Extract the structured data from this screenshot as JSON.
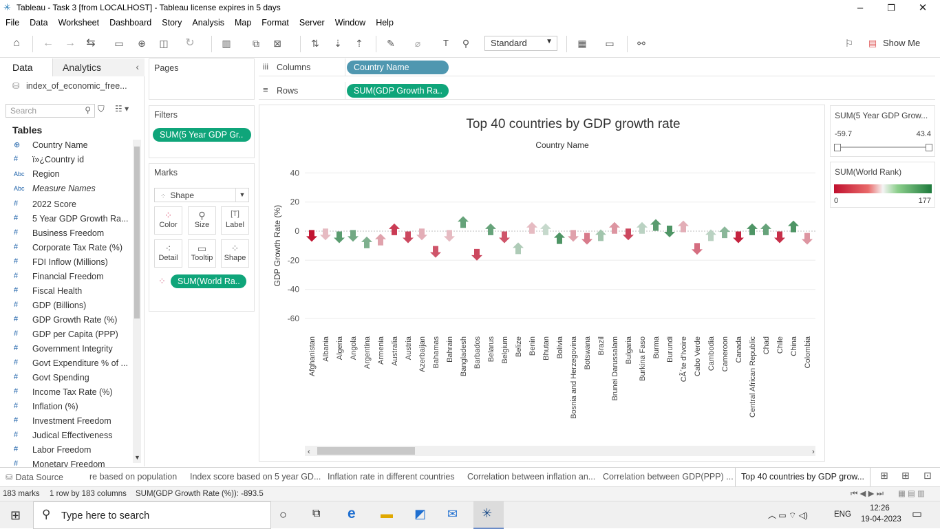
{
  "window": {
    "title": "Tableau - Task 3 [from LOCALHOST] - Tableau license expires in 5 days"
  },
  "menu": [
    "File",
    "Data",
    "Worksheet",
    "Dashboard",
    "Story",
    "Analysis",
    "Map",
    "Format",
    "Server",
    "Window",
    "Help"
  ],
  "toolbar": {
    "view_mode": "Standard",
    "show_me": "Show Me"
  },
  "left_panel": {
    "tab_data": "Data",
    "tab_analytics": "Analytics",
    "data_source": "index_of_economic_free...",
    "search_placeholder": "Search",
    "tables_label": "Tables",
    "fields": [
      {
        "icon": "globe",
        "label": "Country Name"
      },
      {
        "icon": "#",
        "label": "ï»¿Country id"
      },
      {
        "icon": "Abc",
        "label": "Region"
      },
      {
        "icon": "Abc",
        "label": "Measure Names",
        "italic": true
      },
      {
        "icon": "#",
        "label": "2022 Score"
      },
      {
        "icon": "#",
        "label": "5 Year GDP Growth Ra..."
      },
      {
        "icon": "#",
        "label": "Business Freedom"
      },
      {
        "icon": "#",
        "label": "Corporate Tax Rate (%)"
      },
      {
        "icon": "#",
        "label": "FDI Inflow (Millions)"
      },
      {
        "icon": "#",
        "label": "Financial Freedom"
      },
      {
        "icon": "#",
        "label": "Fiscal Health"
      },
      {
        "icon": "#",
        "label": "GDP (Billions)"
      },
      {
        "icon": "#",
        "label": "GDP Growth Rate (%)"
      },
      {
        "icon": "#",
        "label": "GDP per Capita (PPP)"
      },
      {
        "icon": "#",
        "label": "Government Integrity"
      },
      {
        "icon": "#",
        "label": "Govt Expenditure % of ..."
      },
      {
        "icon": "#",
        "label": "Govt Spending"
      },
      {
        "icon": "#",
        "label": "Income Tax Rate (%)"
      },
      {
        "icon": "#",
        "label": "Inflation (%)"
      },
      {
        "icon": "#",
        "label": "Investment Freedom"
      },
      {
        "icon": "#",
        "label": "Judical Effectiveness"
      },
      {
        "icon": "#",
        "label": "Labor Freedom"
      },
      {
        "icon": "#",
        "label": "Monetary Freedom"
      }
    ]
  },
  "cards": {
    "pages": "Pages",
    "filters": "Filters",
    "filter_pill": "SUM(5 Year GDP Gr..",
    "marks": "Marks",
    "mark_type": "Shape",
    "mark_buttons": [
      "Color",
      "Size",
      "Label",
      "Detail",
      "Tooltip",
      "Shape"
    ],
    "marks_pill": "SUM(World Ra.."
  },
  "shelves": {
    "columns_label": "Columns",
    "columns_pill": "Country Name",
    "rows_label": "Rows",
    "rows_pill": "SUM(GDP Growth Ra.."
  },
  "legends": {
    "filter_title": "SUM(5 Year GDP Grow...",
    "filter_min": "-59.7",
    "filter_max": "43.4",
    "color_title": "SUM(World Rank)",
    "color_min": "0",
    "color_max": "177"
  },
  "chart_data": {
    "type": "scatter",
    "title": "Top 40 countries by GDP growth rate",
    "xlabel": "Country Name",
    "ylabel": "GDP Growth Rate (%)",
    "ylim": [
      -70,
      50
    ],
    "yticks": [
      40,
      20,
      0,
      -20,
      -40,
      -60
    ],
    "mark_shape": "arrow",
    "color_scale": [
      "#c0102e",
      "#f2f2f2",
      "#1e7a3c"
    ],
    "points": [
      {
        "country": "Afghanistan",
        "value": -3,
        "dir": "down",
        "rank": 175
      },
      {
        "country": "Albania",
        "value": -2,
        "dir": "down",
        "rank": 110
      },
      {
        "country": "Algeria",
        "value": -4,
        "dir": "down",
        "rank": 25
      },
      {
        "country": "Angola",
        "value": -3,
        "dir": "down",
        "rank": 35
      },
      {
        "country": "Argentina",
        "value": -8,
        "dir": "up",
        "rank": 40
      },
      {
        "country": "Armenia",
        "value": -6,
        "dir": "up",
        "rank": 120
      },
      {
        "country": "Australia",
        "value": 1,
        "dir": "up",
        "rank": 160
      },
      {
        "country": "Austria",
        "value": -4,
        "dir": "down",
        "rank": 155
      },
      {
        "country": "Azerbaijan",
        "value": -2,
        "dir": "down",
        "rank": 115
      },
      {
        "country": "Bahamas",
        "value": -14,
        "dir": "down",
        "rank": 150
      },
      {
        "country": "Bahrain",
        "value": -3,
        "dir": "down",
        "rank": 110
      },
      {
        "country": "Bangladesh",
        "value": 6,
        "dir": "up",
        "rank": 30
      },
      {
        "country": "Barbados",
        "value": -16,
        "dir": "down",
        "rank": 155
      },
      {
        "country": "Belarus",
        "value": 1,
        "dir": "up",
        "rank": 30
      },
      {
        "country": "Belgium",
        "value": -4,
        "dir": "down",
        "rank": 150
      },
      {
        "country": "Belize",
        "value": -12,
        "dir": "up",
        "rank": 60
      },
      {
        "country": "Benin",
        "value": 2,
        "dir": "up",
        "rank": 110
      },
      {
        "country": "Bhutan",
        "value": 1,
        "dir": "up",
        "rank": 70
      },
      {
        "country": "Bolivia",
        "value": -5,
        "dir": "up",
        "rank": 20
      },
      {
        "country": "Bosnia and Herzegovina",
        "value": -3,
        "dir": "down",
        "rank": 120
      },
      {
        "country": "Botswana",
        "value": -5,
        "dir": "down",
        "rank": 135
      },
      {
        "country": "Brazil",
        "value": -3,
        "dir": "up",
        "rank": 55
      },
      {
        "country": "Brunei Darussalam",
        "value": 2,
        "dir": "up",
        "rank": 125
      },
      {
        "country": "Bulgaria",
        "value": -2,
        "dir": "down",
        "rank": 155
      },
      {
        "country": "Burkina Faso",
        "value": 2,
        "dir": "up",
        "rank": 65
      },
      {
        "country": "Burma",
        "value": 4,
        "dir": "up",
        "rank": 25
      },
      {
        "country": "Burundi",
        "value": 0,
        "dir": "down",
        "rank": 20
      },
      {
        "country": "CÃ´te d'Ivoire",
        "value": 3,
        "dir": "up",
        "rank": 115
      },
      {
        "country": "Cabo Verde",
        "value": -12,
        "dir": "down",
        "rank": 140
      },
      {
        "country": "Cambodia",
        "value": -3,
        "dir": "up",
        "rank": 65
      },
      {
        "country": "Cameroon",
        "value": -1,
        "dir": "up",
        "rank": 45
      },
      {
        "country": "Canada",
        "value": -4,
        "dir": "down",
        "rank": 170
      },
      {
        "country": "Central African Republic",
        "value": 1,
        "dir": "up",
        "rank": 20
      },
      {
        "country": "Chad",
        "value": 1,
        "dir": "up",
        "rank": 30
      },
      {
        "country": "Chile",
        "value": -4,
        "dir": "down",
        "rank": 165
      },
      {
        "country": "China",
        "value": 3,
        "dir": "up",
        "rank": 20
      },
      {
        "country": "Colombia",
        "value": -5,
        "dir": "down",
        "rank": 125
      }
    ]
  },
  "sheet_tabs": {
    "data_source": "Data Source",
    "tabs": [
      "re based on population",
      "Index score based on 5 year GD...",
      "Inflation rate in different countries",
      "Correlation between inflation an...",
      "Correlation between GDP(PPP) ...",
      "Top 40 countries by GDP grow..."
    ]
  },
  "status": {
    "marks": "183 marks",
    "rows_cols": "1 row by 183 columns",
    "sum": "SUM(GDP Growth Rate (%)): -893.5"
  },
  "taskbar": {
    "search_placeholder": "Type here to search",
    "lang": "ENG",
    "time": "12:26",
    "date": "19-04-2023"
  }
}
